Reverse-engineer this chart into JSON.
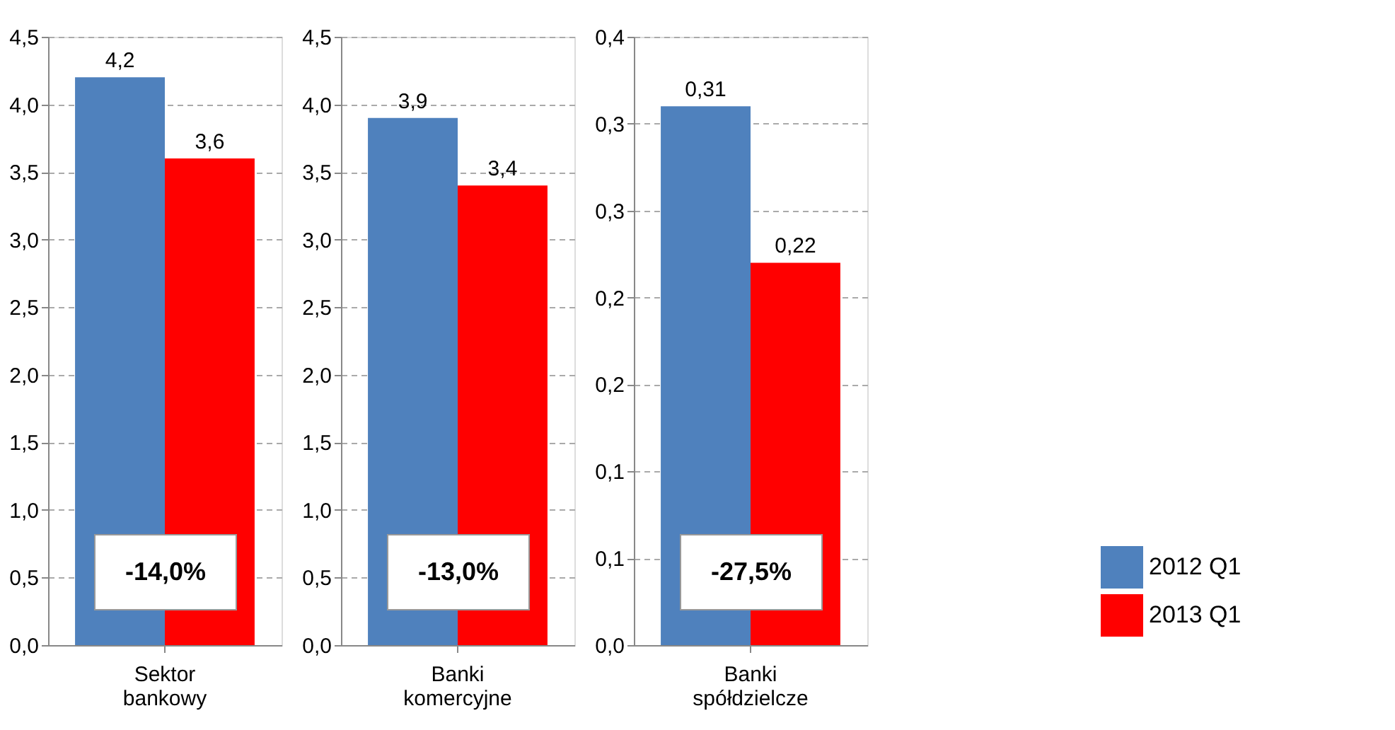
{
  "chart_data": [
    {
      "type": "bar",
      "categories": [
        "Sektor bankowy"
      ],
      "series": [
        {
          "color": "#4f81bd",
          "values": [
            4.2
          ],
          "value_labels": [
            "4,2"
          ]
        },
        {
          "color": "#ff0000",
          "values": [
            3.6
          ],
          "value_labels": [
            "3,6"
          ]
        }
      ],
      "ylim": [
        0,
        4.5
      ],
      "yticks": [
        {
          "value": 0,
          "label": "0,0"
        },
        {
          "value": 0.5,
          "label": "0,5"
        },
        {
          "value": 1,
          "label": "1,0"
        },
        {
          "value": 1.5,
          "label": "1,5"
        },
        {
          "value": 2,
          "label": "2,0"
        },
        {
          "value": 2.5,
          "label": "2,5"
        },
        {
          "value": 3,
          "label": "3,0"
        },
        {
          "value": 3.5,
          "label": "3,5"
        },
        {
          "value": 4,
          "label": "4,0"
        },
        {
          "value": 4.5,
          "label": "4,5"
        }
      ],
      "grid": "y",
      "annotations": [
        "-14,0%"
      ],
      "legend": false
    },
    {
      "type": "bar",
      "categories": [
        "Banki komercyjne"
      ],
      "series": [
        {
          "color": "#4f81bd",
          "values": [
            3.9
          ],
          "value_labels": [
            "3,9"
          ]
        },
        {
          "color": "#ff0000",
          "values": [
            3.4
          ],
          "value_labels": [
            "3,4"
          ]
        }
      ],
      "ylim": [
        0,
        4.5
      ],
      "yticks": [
        {
          "value": 0,
          "label": "0,0"
        },
        {
          "value": 0.5,
          "label": "0,5"
        },
        {
          "value": 1,
          "label": "1,0"
        },
        {
          "value": 1.5,
          "label": "1,5"
        },
        {
          "value": 2,
          "label": "2,0"
        },
        {
          "value": 2.5,
          "label": "2,5"
        },
        {
          "value": 3,
          "label": "3,0"
        },
        {
          "value": 3.5,
          "label": "3,5"
        },
        {
          "value": 4,
          "label": "4,0"
        },
        {
          "value": 4.5,
          "label": "4,5"
        }
      ],
      "grid": "y",
      "annotations": [
        "-13,0%"
      ],
      "legend": false
    },
    {
      "type": "bar",
      "categories": [
        "Banki spółdzielcze"
      ],
      "series": [
        {
          "name": "2012 Q1",
          "color": "#4f81bd",
          "values": [
            0.31
          ],
          "value_labels": [
            "0,31"
          ]
        },
        {
          "name": "2013 Q1",
          "color": "#ff0000",
          "values": [
            0.22
          ],
          "value_labels": [
            "0,22"
          ]
        }
      ],
      "ylim": [
        0,
        0.35
      ],
      "yticks": [
        {
          "value": 0,
          "label": "0,0"
        },
        {
          "value": 0.05,
          "label": "0,1"
        },
        {
          "value": 0.1,
          "label": "0,1"
        },
        {
          "value": 0.15,
          "label": "0,2"
        },
        {
          "value": 0.2,
          "label": "0,2"
        },
        {
          "value": 0.25,
          "label": "0,3"
        },
        {
          "value": 0.3,
          "label": "0,3"
        },
        {
          "value": 0.35,
          "label": "0,4"
        }
      ],
      "grid": "y",
      "annotations": [
        "-27,5%"
      ],
      "legend": "bottom right"
    }
  ]
}
